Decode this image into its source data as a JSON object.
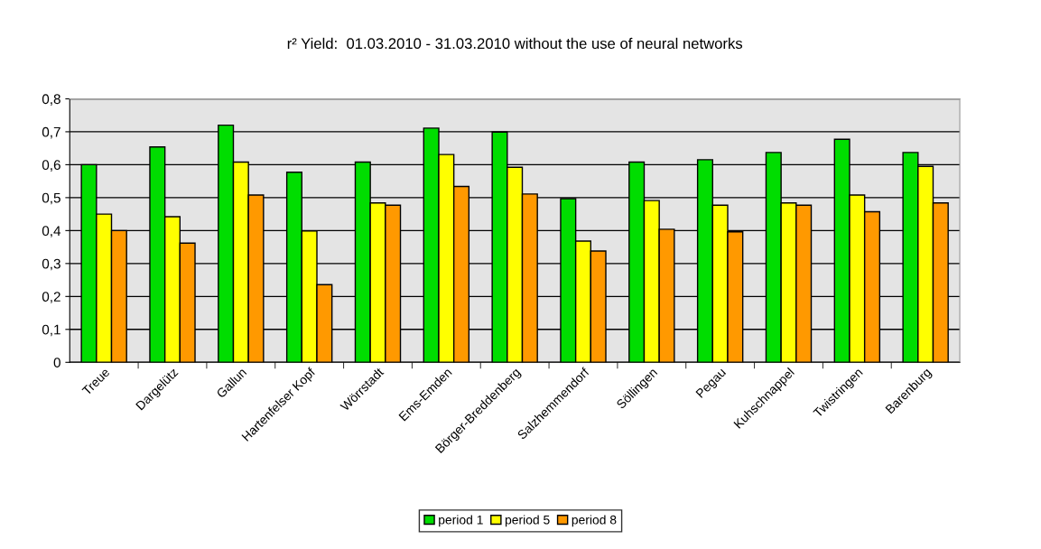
{
  "chart_data": {
    "type": "bar",
    "title": "r² Yield:  01.03.2010 - 31.03.2010 without the use of neural networks",
    "categories": [
      "Treue",
      "Dargelütz",
      "Gallun",
      "Hartenfelser Kopf",
      "Wörrstadt",
      "Ems-Emden",
      "Börger-Breddenberg",
      "Salzhemmendorf",
      "Söllingen",
      "Pegau",
      "Kuhschnappel",
      "Twistringen",
      "Barenburg"
    ],
    "series": [
      {
        "name": "period 1",
        "color": "#00dd00",
        "values": [
          0.6,
          0.654,
          0.72,
          0.577,
          0.608,
          0.711,
          0.699,
          0.497,
          0.608,
          0.615,
          0.637,
          0.677,
          0.637
        ]
      },
      {
        "name": "period 5",
        "color": "#ffff00",
        "values": [
          0.45,
          0.442,
          0.608,
          0.399,
          0.484,
          0.631,
          0.592,
          0.368,
          0.491,
          0.477,
          0.484,
          0.508,
          0.595
        ]
      },
      {
        "name": "period 8",
        "color": "#ff9900",
        "values": [
          0.4,
          0.362,
          0.508,
          0.236,
          0.477,
          0.534,
          0.511,
          0.338,
          0.404,
          0.396,
          0.477,
          0.457,
          0.484
        ]
      }
    ],
    "ylim": [
      0,
      0.8
    ],
    "yticks": [
      0,
      {
        "value": 0.1,
        "label": "0,1"
      },
      {
        "value": 0.2,
        "label": "0,2"
      },
      {
        "value": 0.3,
        "label": "0,3"
      },
      {
        "value": 0.4,
        "label": "0,4"
      },
      {
        "value": 0.5,
        "label": "0,5"
      },
      {
        "value": 0.6,
        "label": "0,6"
      },
      {
        "value": 0.7,
        "label": "0,7"
      },
      {
        "value": 0.8,
        "label": "0,8"
      }
    ],
    "grid": "y",
    "legend": "bottom"
  }
}
